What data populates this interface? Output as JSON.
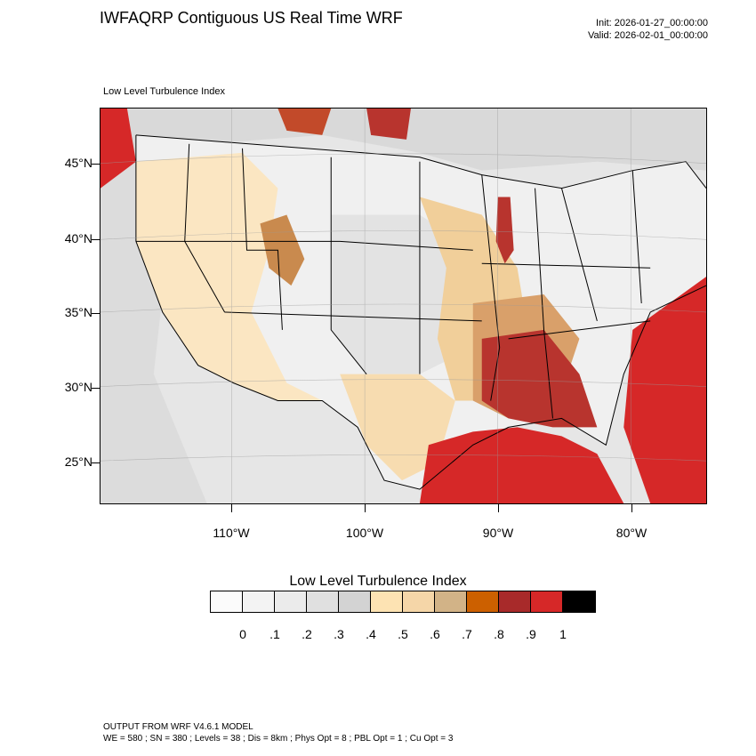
{
  "header": {
    "title": "IWFAQRP Contiguous US Real Time WRF",
    "init": "Init: 2026-01-27_00:00:00",
    "valid": "Valid: 2026-02-01_00:00:00"
  },
  "map": {
    "subtitle": "Low Level Turbulence Index",
    "lat_labels": [
      "45°N",
      "40°N",
      "35°N",
      "30°N",
      "25°N"
    ],
    "lon_labels": [
      "110°W",
      "100°W",
      "90°W",
      "80°W"
    ]
  },
  "legend": {
    "title": "Low Level Turbulence Index",
    "labels": [
      "0",
      ".1",
      ".2",
      ".3",
      ".4",
      ".5",
      ".6",
      ".7",
      ".8",
      ".9",
      "1"
    ],
    "colors": [
      "#fbfbfb",
      "#f3f3f3",
      "#ebebeb",
      "#e0e0e0",
      "#d3d3d3",
      "#fde3b3",
      "#f5d6a8",
      "#d2b387",
      "#cc6000",
      "#a82a2a",
      "#d62828",
      "#000000"
    ]
  },
  "footer": {
    "line1": "OUTPUT FROM WRF V4.6.1 MODEL",
    "line2": "WE = 580 ; SN = 380 ; Levels = 38 ; Dis = 8km ; Phys Opt = 8 ; PBL Opt = 1 ; Cu Opt = 3"
  }
}
